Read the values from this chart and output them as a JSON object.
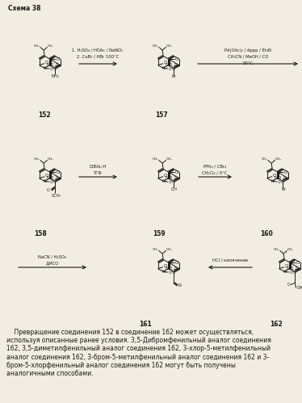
{
  "title": "Схема 38",
  "bg_color": "#f2ede2",
  "text_color": "#1a1a1a",
  "paragraph_lines": [
    "    Превращение соединения 152 в соединение 162 может осуществляться,",
    "используя описанные ранее условия. 3,5-Дибромфенильный аналог соединения",
    "162, 3,5-диметилфенильный аналог соединения 162, 3-хлор-5-метилфенильный",
    "аналог соединения 162, 3-бром-5-метилфенильный аналог соединения 162 и 3-",
    "бром-5-хлорфенильный аналог соединения 162 могут быть получены",
    "аналогичными способами."
  ],
  "row1_r1_cond": [
    "1. H₂SO₄ / HOAc / NaNO₂",
    "2. CuBr / HBr 100°C"
  ],
  "row1_r2_cond": [
    "Pd(OAc)₂ / dppp / Et₃N",
    "CH₃CN / MeOH / CO",
    "50°C"
  ],
  "row2_r1_cond": [
    "DIBAL-H",
    "ТГФ"
  ],
  "row2_r2_cond": [
    "PPh₃ / CBr₄",
    "CH₂Cl₂ / 0°C"
  ],
  "row3_r1_cond": [
    "NaCN / H₂SO₄",
    "ДМСО"
  ],
  "row3_r2_cond": [
    "HCl / кипячение"
  ]
}
